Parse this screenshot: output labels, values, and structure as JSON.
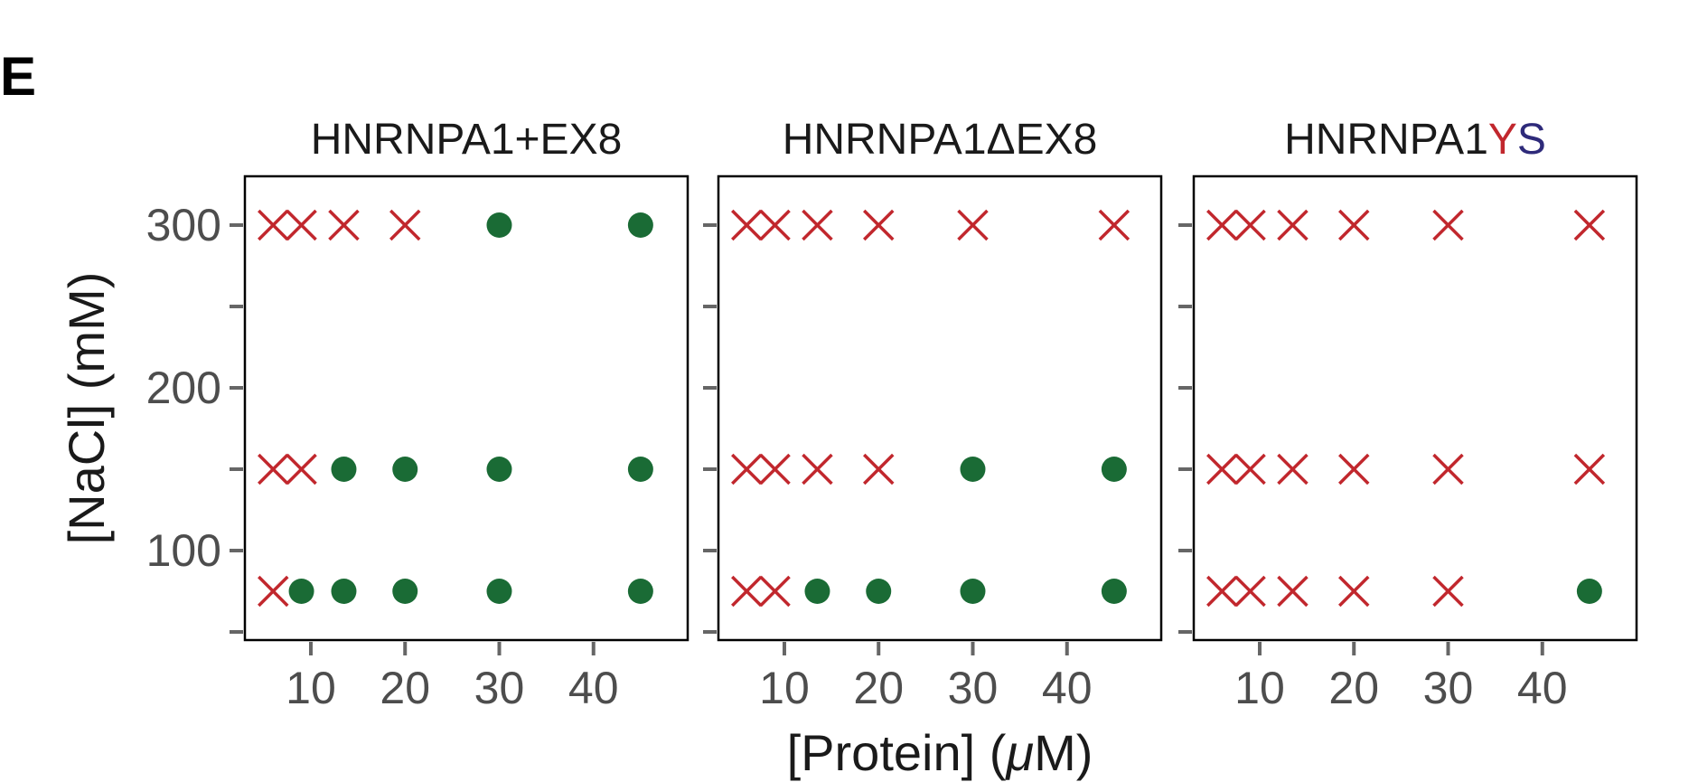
{
  "chart_data": {
    "type": "scatter",
    "panel_label": "E",
    "xlabel_pre": "[Protein] (",
    "xlabel_unit": "μ",
    "xlabel_post": "M)",
    "ylabel": "[NaCl] (mM)",
    "xlim": [
      3,
      50
    ],
    "ylim": [
      45,
      330
    ],
    "x_ticks": [
      10,
      20,
      30,
      40
    ],
    "x_tick_labels": [
      "10",
      "20",
      "30",
      "40"
    ],
    "y_ticks": [
      50,
      100,
      150,
      200,
      250,
      300
    ],
    "y_tick_labels": [
      "",
      "100",
      "",
      "200",
      "",
      "300"
    ],
    "legend": "none",
    "grid": false,
    "colors": {
      "no_phase_separation": "#c1272d",
      "phase_separation": "#1a6b35",
      "panel_border": "#000000",
      "tick": "#666666",
      "title_y": "#c1272d",
      "title_s": "#2e2a7a"
    },
    "panels": [
      {
        "title_segments": [
          {
            "text": "HNRNPA1+EX8",
            "color": "#1a1a1a"
          }
        ],
        "points": [
          {
            "x": 6,
            "y": 300,
            "phase": false
          },
          {
            "x": 9,
            "y": 300,
            "phase": false
          },
          {
            "x": 13.5,
            "y": 300,
            "phase": false
          },
          {
            "x": 20,
            "y": 300,
            "phase": false
          },
          {
            "x": 30,
            "y": 300,
            "phase": true
          },
          {
            "x": 45,
            "y": 300,
            "phase": true
          },
          {
            "x": 6,
            "y": 150,
            "phase": false
          },
          {
            "x": 9,
            "y": 150,
            "phase": false
          },
          {
            "x": 13.5,
            "y": 150,
            "phase": true
          },
          {
            "x": 20,
            "y": 150,
            "phase": true
          },
          {
            "x": 30,
            "y": 150,
            "phase": true
          },
          {
            "x": 45,
            "y": 150,
            "phase": true
          },
          {
            "x": 6,
            "y": 75,
            "phase": false
          },
          {
            "x": 9,
            "y": 75,
            "phase": true
          },
          {
            "x": 13.5,
            "y": 75,
            "phase": true
          },
          {
            "x": 20,
            "y": 75,
            "phase": true
          },
          {
            "x": 30,
            "y": 75,
            "phase": true
          },
          {
            "x": 45,
            "y": 75,
            "phase": true
          }
        ]
      },
      {
        "title_segments": [
          {
            "text": "HNRNPA1ΔEX8",
            "color": "#1a1a1a"
          }
        ],
        "points": [
          {
            "x": 6,
            "y": 300,
            "phase": false
          },
          {
            "x": 9,
            "y": 300,
            "phase": false
          },
          {
            "x": 13.5,
            "y": 300,
            "phase": false
          },
          {
            "x": 20,
            "y": 300,
            "phase": false
          },
          {
            "x": 30,
            "y": 300,
            "phase": false
          },
          {
            "x": 45,
            "y": 300,
            "phase": false
          },
          {
            "x": 6,
            "y": 150,
            "phase": false
          },
          {
            "x": 9,
            "y": 150,
            "phase": false
          },
          {
            "x": 13.5,
            "y": 150,
            "phase": false
          },
          {
            "x": 20,
            "y": 150,
            "phase": false
          },
          {
            "x": 30,
            "y": 150,
            "phase": true
          },
          {
            "x": 45,
            "y": 150,
            "phase": true
          },
          {
            "x": 6,
            "y": 75,
            "phase": false
          },
          {
            "x": 9,
            "y": 75,
            "phase": false
          },
          {
            "x": 13.5,
            "y": 75,
            "phase": true
          },
          {
            "x": 20,
            "y": 75,
            "phase": true
          },
          {
            "x": 30,
            "y": 75,
            "phase": true
          },
          {
            "x": 45,
            "y": 75,
            "phase": true
          }
        ]
      },
      {
        "title_segments": [
          {
            "text": "HNRNPA1",
            "color": "#1a1a1a"
          },
          {
            "text": "Y",
            "color": "#c1272d"
          },
          {
            "text": "S",
            "color": "#2e2a7a"
          }
        ],
        "points": [
          {
            "x": 6,
            "y": 300,
            "phase": false
          },
          {
            "x": 9,
            "y": 300,
            "phase": false
          },
          {
            "x": 13.5,
            "y": 300,
            "phase": false
          },
          {
            "x": 20,
            "y": 300,
            "phase": false
          },
          {
            "x": 30,
            "y": 300,
            "phase": false
          },
          {
            "x": 45,
            "y": 300,
            "phase": false
          },
          {
            "x": 6,
            "y": 150,
            "phase": false
          },
          {
            "x": 9,
            "y": 150,
            "phase": false
          },
          {
            "x": 13.5,
            "y": 150,
            "phase": false
          },
          {
            "x": 20,
            "y": 150,
            "phase": false
          },
          {
            "x": 30,
            "y": 150,
            "phase": false
          },
          {
            "x": 45,
            "y": 150,
            "phase": false
          },
          {
            "x": 6,
            "y": 75,
            "phase": false
          },
          {
            "x": 9,
            "y": 75,
            "phase": false
          },
          {
            "x": 13.5,
            "y": 75,
            "phase": false
          },
          {
            "x": 20,
            "y": 75,
            "phase": false
          },
          {
            "x": 30,
            "y": 75,
            "phase": false
          },
          {
            "x": 45,
            "y": 75,
            "phase": true
          }
        ]
      }
    ]
  }
}
